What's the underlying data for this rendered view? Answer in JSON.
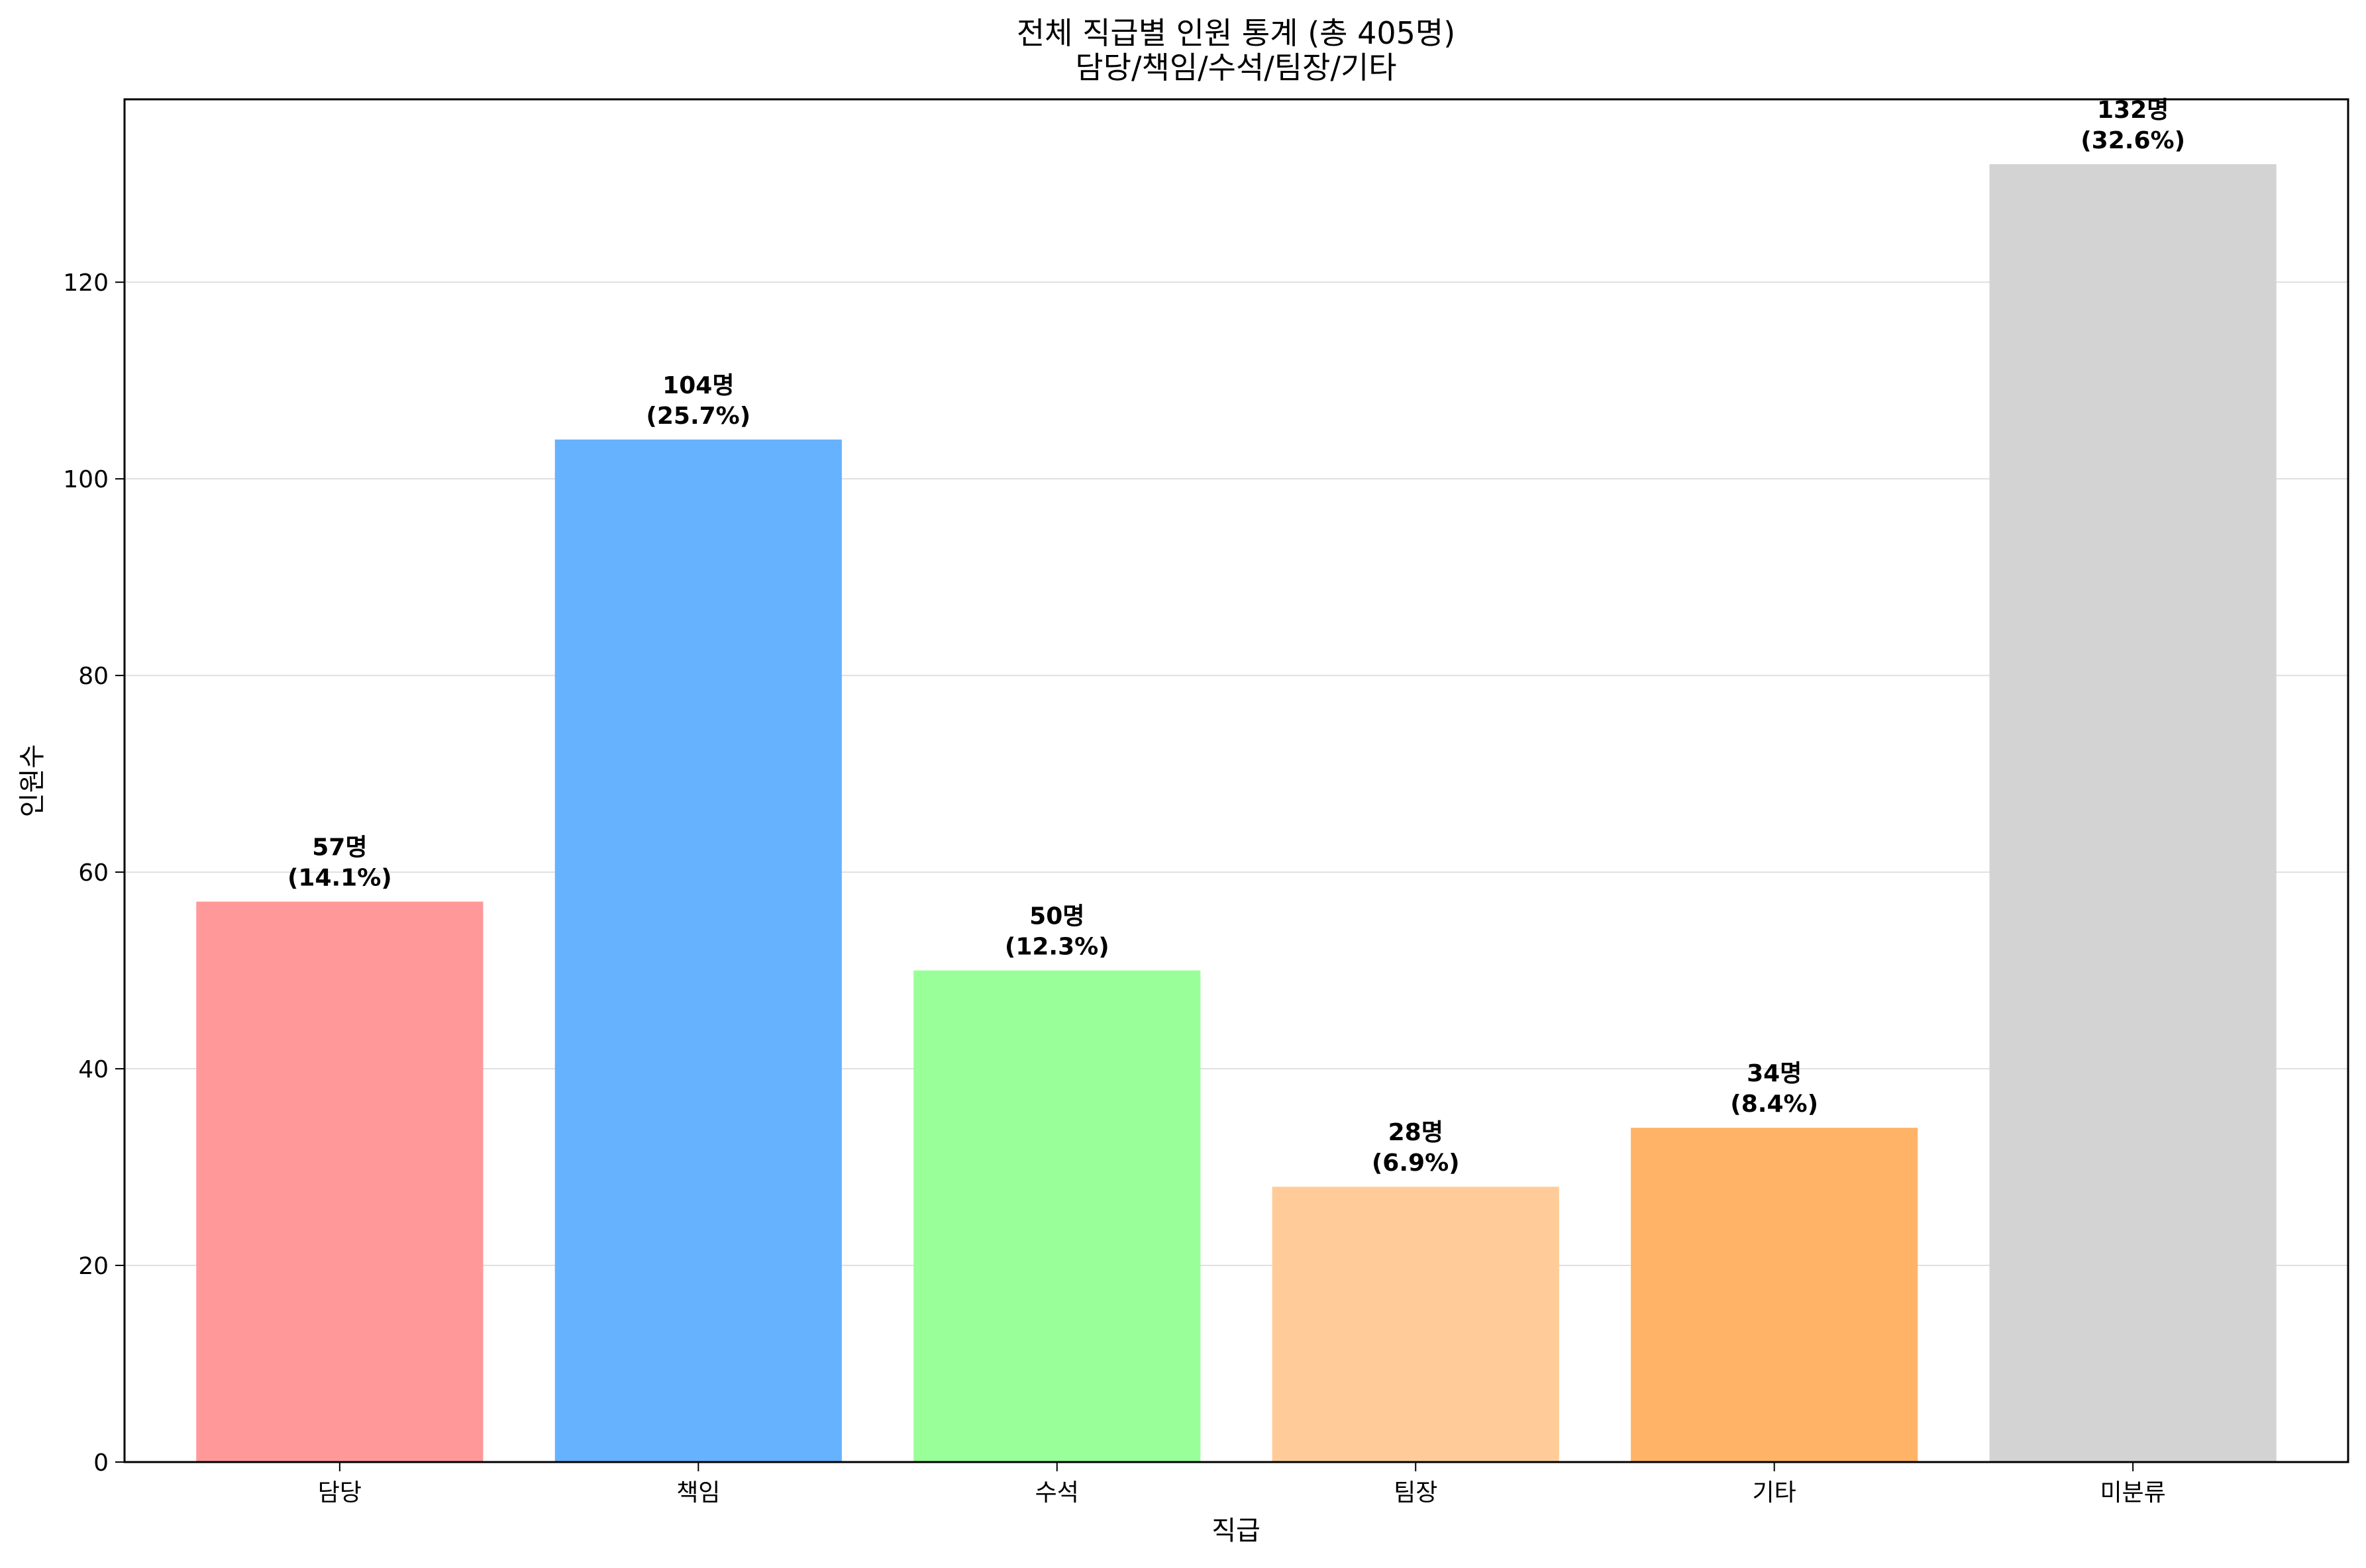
{
  "chart_data": {
    "type": "bar",
    "title": "전체 직급별 인원 통계 (총 405명)",
    "subtitle": "담당/책임/수석/팀장/기타",
    "xlabel": "직급",
    "ylabel": "인원수",
    "categories": [
      "담당",
      "책임",
      "수석",
      "팀장",
      "기타",
      "미분류"
    ],
    "values": [
      57,
      104,
      50,
      28,
      34,
      132
    ],
    "value_labels": [
      "57명",
      "104명",
      "50명",
      "28명",
      "34명",
      "132명"
    ],
    "percent_labels": [
      "(14.1%)",
      "(25.7%)",
      "(12.3%)",
      "(6.9%)",
      "(8.4%)",
      "(32.6%)"
    ],
    "colors": [
      "#ff9999",
      "#66b2ff",
      "#99ff99",
      "#ffcc99",
      "#ffb366",
      "#d3d3d3"
    ],
    "ylim": [
      0,
      138.6
    ],
    "yticks": [
      0,
      20,
      40,
      60,
      80,
      100,
      120
    ],
    "grid": "y"
  }
}
